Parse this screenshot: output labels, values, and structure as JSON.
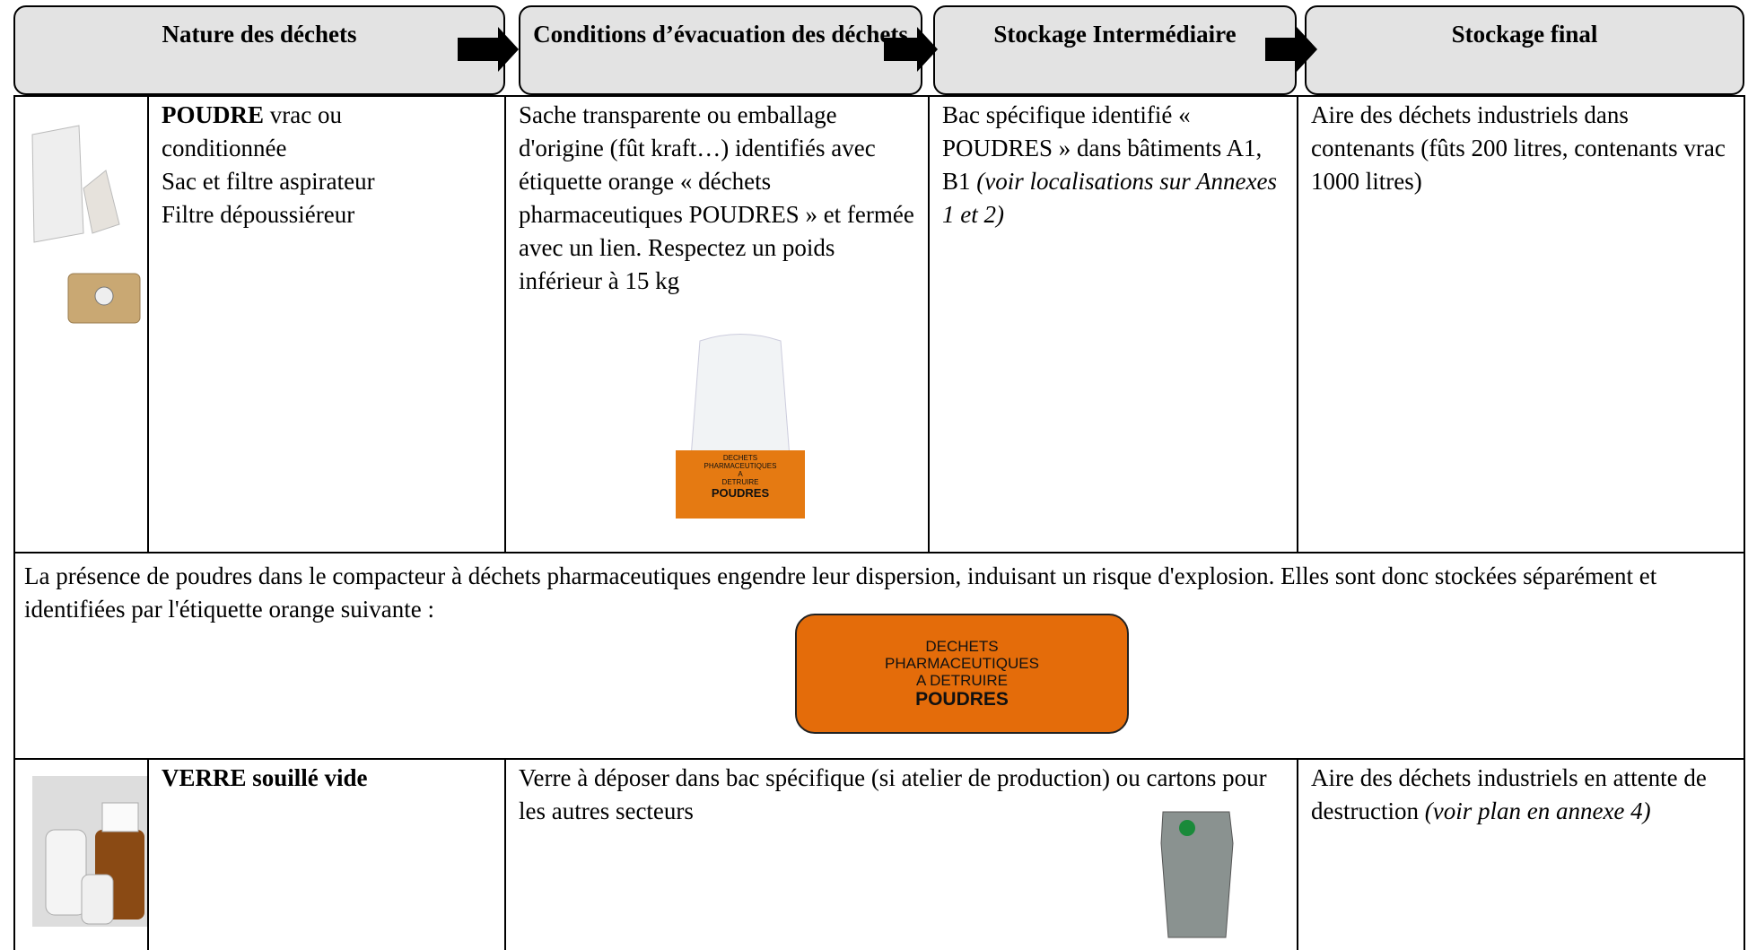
{
  "header": {
    "columns": [
      "Nature des déchets",
      "Conditions d’évacuation des déchets",
      "Stockage Intermédiaire",
      "Stockage final"
    ]
  },
  "rows": [
    {
      "nature": {
        "bold": "POUDRE",
        "rest": " vrac ou",
        "lines": [
          "conditionnée",
          "Sac et filtre aspirateur",
          "Filtre dépoussiéreur"
        ]
      },
      "conditions": "Sache transparente ou emballage d'origine (fût kraft…) identifiés avec étiquette orange « déchets pharmaceutiques POUDRES » et fermée avec un lien. Respectez un poids inférieur à 15 kg",
      "bag_label": [
        "DECHETS",
        "PHARMACEUTIQUES",
        "A",
        "DETRUIRE",
        "POUDRES"
      ],
      "intermediate": {
        "text": "Bac spécifique identifié « POUDRES » dans bâtiments A1, B1 ",
        "italic": "(voir localisations sur Annexes 1 et 2)"
      },
      "final": {
        "text": "Aire des déchets industriels dans contenants (fûts 200 litres, contenants vrac 1000 litres)"
      }
    },
    {
      "nature": {
        "bold": "VERRE souillé vide"
      },
      "conditions": "Verre à déposer dans bac spécifique (si atelier de production) ou cartons pour les autres secteurs",
      "final": {
        "text": "Aire des déchets industriels en attente de destruction ",
        "italic": "(voir plan en annexe 4)"
      }
    }
  ],
  "note": {
    "text": "La présence de poudres dans le compacteur à déchets pharmaceutiques engendre leur dispersion, induisant un risque d'explosion. Elles sont donc stockées séparément et identifiées par l'étiquette orange suivante :",
    "label": [
      "DECHETS",
      "PHARMACEUTIQUES",
      "A DETRUIRE",
      "POUDRES"
    ]
  }
}
